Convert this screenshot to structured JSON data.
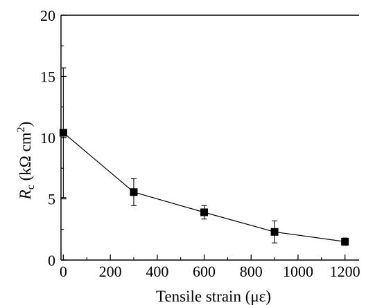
{
  "chart_data": {
    "type": "line",
    "title": "",
    "xlabel": "Tensile strain (με)",
    "ylabel": {
      "symbol": "R",
      "subscript": "c",
      "units": " (kΩ cm",
      "superscript": "2",
      "close": ")"
    },
    "xlim": [
      -10,
      1260
    ],
    "ylim": [
      0,
      20
    ],
    "x_ticks": [
      0,
      200,
      400,
      600,
      800,
      1000,
      1200
    ],
    "y_ticks": [
      0,
      5,
      10,
      15,
      20
    ],
    "marker": "square",
    "line_color": "#000000",
    "series": [
      {
        "x": [
          0,
          300,
          600,
          900,
          1200
        ],
        "y": [
          10.4,
          5.55,
          3.9,
          2.3,
          1.5
        ],
        "error": [
          5.3,
          1.1,
          0.55,
          0.9,
          0.3
        ]
      }
    ]
  }
}
